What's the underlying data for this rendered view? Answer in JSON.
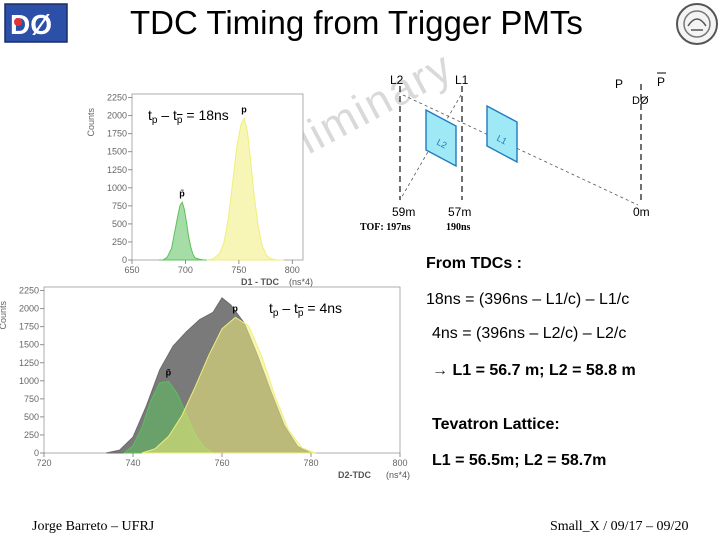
{
  "title": "TDC Timing from Trigger PMTs",
  "watermark": "DØ Preliminary",
  "top_note": {
    "lhs": "t",
    "s1": "p",
    "mid": " – t",
    "s2": "p",
    "rhs": " = 18ns"
  },
  "bottom_note": {
    "lhs": "t",
    "s1": "p",
    "mid": " – t",
    "s2": "p",
    "rhs": " = 4ns"
  },
  "diagram": {
    "labels": {
      "l2": "L2",
      "l1": "L1",
      "p": "P",
      "pbar": "P",
      "d0": "DØ",
      "box_l1": "L1",
      "box_l2": "L2"
    },
    "distances": {
      "l2": "59m",
      "l1": "57m",
      "d0": "0m"
    },
    "tof": {
      "label": "TOF: 197ns",
      "value": "190ns"
    }
  },
  "results": {
    "heading": "From TDCs :",
    "eq1": "18ns = (396ns – L1/c) – L1/c",
    "eq2": "4ns = (396ns – L2/c) – L2/c",
    "arrow": "→",
    "eq3": "L1 = 56.7 m; L2 = 58.8 m",
    "lattice_heading": "Tevatron Lattice:",
    "lattice": "L1 = 56.5m; L2 = 58.7m"
  },
  "footer": {
    "left": "Jorge Barreto – UFRJ",
    "right": "Small_X / 09/17 – 09/20"
  },
  "colors": {
    "green": "#5cbf5c",
    "yellow": "#f0ee7a",
    "dark": "#6b6b6b",
    "blue": "#1f7ac0",
    "cyan": "#9fe8f5"
  },
  "chart_data": [
    {
      "type": "area",
      "title": "",
      "xlabel": "D1 - TDC",
      "xunit": "(ns*4)",
      "ylabel": "Counts",
      "xlim": [
        650,
        810
      ],
      "ylim": [
        0,
        2300
      ],
      "xticks": [
        650,
        700,
        750,
        800
      ],
      "yticks": [
        0,
        250,
        500,
        750,
        1000,
        1250,
        1500,
        1750,
        2000,
        2250
      ],
      "series": [
        {
          "name": "p̄",
          "color": "green",
          "x": [
            675,
            679,
            683,
            687,
            691,
            693,
            695,
            697,
            699,
            701,
            703,
            705,
            707,
            709,
            713,
            717,
            721,
            725
          ],
          "y": [
            0,
            0,
            40,
            160,
            470,
            620,
            760,
            800,
            700,
            520,
            320,
            180,
            80,
            30,
            10,
            0,
            0,
            0
          ]
        },
        {
          "name": "p",
          "color": "yellow",
          "x": [
            720,
            726,
            732,
            736,
            740,
            744,
            748,
            752,
            755,
            758,
            761,
            764,
            768,
            772,
            776,
            780,
            786,
            792
          ],
          "y": [
            0,
            15,
            90,
            240,
            560,
            1050,
            1560,
            1880,
            1960,
            1780,
            1380,
            930,
            470,
            190,
            60,
            15,
            0,
            0
          ]
        }
      ]
    },
    {
      "type": "area",
      "title": "",
      "xlabel": "D2-TDC",
      "xunit": "(ns*4)",
      "ylabel": "Counts",
      "xlim": [
        720,
        800
      ],
      "ylim": [
        0,
        2300
      ],
      "xticks": [
        720,
        740,
        760,
        780,
        800
      ],
      "yticks": [
        0,
        250,
        500,
        750,
        1000,
        1250,
        1500,
        1750,
        2000,
        2250
      ],
      "series": [
        {
          "name": "",
          "color": "dark",
          "x": [
            734,
            737,
            740,
            743,
            746,
            749,
            752,
            755,
            758,
            760,
            762,
            765,
            768,
            771,
            774,
            777,
            780
          ],
          "y": [
            0,
            40,
            220,
            650,
            1150,
            1480,
            1680,
            1850,
            1950,
            2150,
            2050,
            1800,
            1350,
            850,
            380,
            90,
            0
          ]
        },
        {
          "name": "p̄",
          "color": "green",
          "x": [
            738,
            740,
            742,
            744,
            746,
            748,
            750,
            752,
            754,
            756,
            758
          ],
          "y": [
            0,
            100,
            350,
            720,
            970,
            990,
            820,
            530,
            250,
            80,
            0
          ]
        },
        {
          "name": "p",
          "color": "yellow",
          "x": [
            742,
            745,
            748,
            751,
            754,
            757,
            760,
            763,
            766,
            769,
            772,
            775,
            778,
            781
          ],
          "y": [
            0,
            60,
            230,
            520,
            920,
            1350,
            1720,
            1880,
            1760,
            1330,
            770,
            310,
            70,
            0
          ]
        }
      ]
    }
  ]
}
